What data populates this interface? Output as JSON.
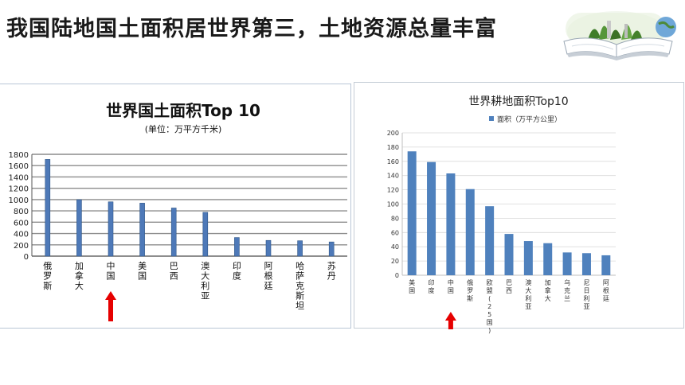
{
  "slide": {
    "title": "我国陆地国土面积居世界第三，土地资源总量丰富"
  },
  "chart_data": [
    {
      "type": "bar",
      "title": "世界国土面积Top 10",
      "subtitle": "(单位：万平方千米)",
      "categories": [
        "俄罗斯",
        "加拿大",
        "中国",
        "美国",
        "巴西",
        "澳大利亚",
        "印度",
        "阿根廷",
        "哈萨克斯坦",
        "苏丹"
      ],
      "values": [
        1710,
        998,
        960,
        937,
        851,
        774,
        329,
        278,
        272,
        251
      ],
      "ylim": [
        0,
        1800
      ],
      "yticks": [
        0,
        200,
        400,
        600,
        800,
        1000,
        1200,
        1400,
        1600,
        1800
      ],
      "grid": true,
      "highlight_category": "中国",
      "colors": {
        "bar": "#4e79b8",
        "grid": "#8c8c8c",
        "arrow": "#e60000"
      }
    },
    {
      "type": "bar",
      "title": "世界耕地面积Top10",
      "legend": "面积（万平方公里）",
      "legend_position": "top",
      "categories": [
        "美国",
        "印度",
        "中国",
        "俄罗斯",
        "欧盟(25国)",
        "巴西",
        "澳大利亚",
        "加拿大",
        "乌克兰",
        "尼日利亚",
        "阿根廷"
      ],
      "values": [
        174,
        159,
        143,
        121,
        97,
        58,
        48,
        45,
        32,
        31,
        28
      ],
      "ylim": [
        0,
        200
      ],
      "yticks": [
        0,
        20,
        40,
        60,
        80,
        100,
        120,
        140,
        160,
        180,
        200
      ],
      "grid": true,
      "highlight_category": "中国",
      "colors": {
        "bar": "#4f81bd",
        "grid": "#d9d9d9",
        "arrow": "#e60000"
      }
    }
  ]
}
